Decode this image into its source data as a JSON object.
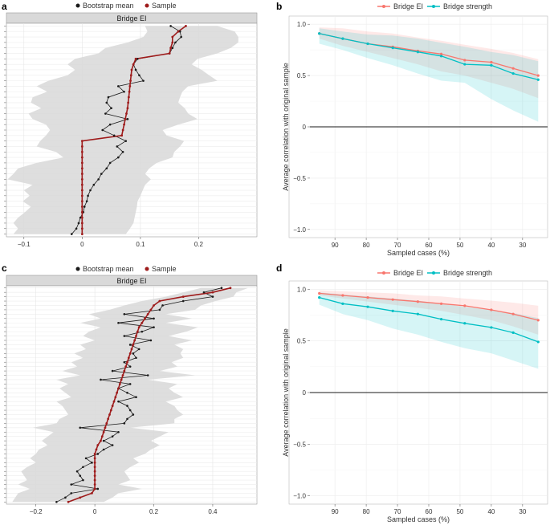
{
  "chart_data": [
    {
      "panel": "a",
      "type": "line",
      "legend": [
        {
          "label": "Bootstrap mean",
          "color": "#1a1a1a"
        },
        {
          "label": "Sample",
          "color": "#9e1b1b"
        }
      ],
      "strip_label": "Bridge EI",
      "xlim": [
        -0.13,
        0.3
      ],
      "xticks": [
        {
          "value": -0.1,
          "label": "−0.1"
        },
        {
          "value": 0,
          "label": "0"
        },
        {
          "value": 0.1,
          "label": "0.1"
        },
        {
          "value": 0.2,
          "label": "0.2"
        }
      ],
      "n_rows": 39,
      "sample": [
        0.178,
        0.165,
        0.155,
        0.155,
        0.152,
        0.15,
        0.092,
        0.088,
        0.085,
        0.084,
        0.083,
        0.082,
        0.081,
        0.08,
        0.079,
        0.078,
        0.076,
        0.074,
        0.072,
        0.07,
        0.068,
        0.0,
        0.0,
        0.0,
        0.0,
        0.0,
        0.0,
        0.0,
        0.0,
        0.0,
        0.0,
        0.0,
        0.0,
        0.0,
        0.0,
        0.0,
        0.0,
        0.0,
        0.0
      ],
      "bootstrap_mean": [
        0.152,
        0.168,
        0.17,
        0.16,
        0.155,
        0.15,
        0.095,
        0.088,
        0.092,
        0.098,
        0.105,
        0.062,
        0.072,
        0.045,
        0.042,
        0.05,
        0.04,
        0.078,
        0.048,
        0.035,
        0.055,
        0.075,
        0.06,
        0.07,
        0.062,
        0.048,
        0.042,
        0.033,
        0.028,
        0.02,
        0.014,
        0.01,
        0.008,
        0.004,
        0.002,
        -0.003,
        -0.006,
        -0.01,
        -0.018
      ],
      "ci_lower": [
        0.108,
        0.112,
        0.105,
        0.078,
        0.04,
        0.028,
        -0.012,
        -0.025,
        -0.012,
        -0.025,
        -0.058,
        -0.078,
        -0.06,
        -0.085,
        -0.088,
        -0.07,
        -0.092,
        -0.085,
        -0.062,
        -0.055,
        -0.062,
        -0.072,
        -0.078,
        -0.045,
        -0.032,
        -0.078,
        -0.11,
        -0.118,
        -0.128,
        -0.085,
        -0.1,
        -0.09,
        -0.102,
        -0.088,
        -0.098,
        -0.11,
        -0.118,
        -0.11,
        -0.118
      ],
      "ci_upper": [
        0.232,
        0.262,
        0.268,
        0.268,
        0.255,
        0.232,
        0.198,
        0.188,
        0.205,
        0.218,
        0.232,
        0.182,
        0.172,
        0.168,
        0.165,
        0.176,
        0.182,
        0.198,
        0.165,
        0.138,
        0.145,
        0.175,
        0.168,
        0.158,
        0.155,
        0.128,
        0.115,
        0.108,
        0.118,
        0.108,
        0.104,
        0.1,
        0.095,
        0.094,
        0.092,
        0.09,
        0.088,
        0.082,
        0.075
      ]
    },
    {
      "panel": "b",
      "type": "line",
      "legend": [
        {
          "label": "Bridge EI",
          "color": "#f8766d"
        },
        {
          "label": "Bridge strength",
          "color": "#00bfc4"
        }
      ],
      "xlabel": "Sampled cases (%)",
      "ylabel": "Average correlation with original sample",
      "xlim": [
        98,
        22
      ],
      "ylim": [
        -1.08,
        1.08
      ],
      "xticks": [
        90,
        80,
        70,
        60,
        50,
        40,
        30
      ],
      "yticks": [
        {
          "value": 1,
          "label": "1.0"
        },
        {
          "value": 0.5,
          "label": "0.5"
        },
        {
          "value": 0,
          "label": "0"
        },
        {
          "value": -0.5,
          "label": "−0.5"
        },
        {
          "value": -1,
          "label": "−1.0"
        }
      ],
      "x": [
        95,
        87.5,
        79.5,
        71.5,
        63.5,
        56,
        48.5,
        40,
        33,
        25
      ],
      "series": [
        {
          "name": "Bridge EI",
          "color": "#f8766d",
          "values": [
            0.91,
            0.86,
            0.81,
            0.78,
            0.74,
            0.71,
            0.65,
            0.63,
            0.57,
            0.5
          ],
          "lower": [
            0.86,
            0.79,
            0.73,
            0.67,
            0.61,
            0.54,
            0.5,
            0.43,
            0.37,
            0.28
          ],
          "upper": [
            0.97,
            0.96,
            0.93,
            0.91,
            0.87,
            0.84,
            0.8,
            0.76,
            0.72,
            0.66
          ]
        },
        {
          "name": "Bridge strength",
          "color": "#00bfc4",
          "values": [
            0.91,
            0.86,
            0.81,
            0.77,
            0.73,
            0.69,
            0.61,
            0.6,
            0.52,
            0.46
          ],
          "lower": [
            0.81,
            0.75,
            0.67,
            0.6,
            0.52,
            0.45,
            0.43,
            0.27,
            0.16,
            0.05
          ],
          "upper": [
            0.96,
            0.93,
            0.9,
            0.89,
            0.86,
            0.82,
            0.78,
            0.73,
            0.7,
            0.64
          ]
        }
      ]
    },
    {
      "panel": "c",
      "type": "line",
      "legend": [
        {
          "label": "Bootstrap mean",
          "color": "#1a1a1a"
        },
        {
          "label": "Sample",
          "color": "#9e1b1b"
        }
      ],
      "strip_label": "Bridge EI",
      "xlim": [
        -0.3,
        0.55
      ],
      "xticks": [
        {
          "value": -0.2,
          "label": "−0.2"
        },
        {
          "value": 0,
          "label": "0"
        },
        {
          "value": 0.2,
          "label": "0.2"
        },
        {
          "value": 0.4,
          "label": "0.4"
        }
      ],
      "n_rows": 50,
      "sample": [
        0.46,
        0.4,
        0.3,
        0.22,
        0.2,
        0.19,
        0.18,
        0.17,
        0.16,
        0.15,
        0.145,
        0.14,
        0.135,
        0.13,
        0.125,
        0.12,
        0.115,
        0.11,
        0.105,
        0.1,
        0.095,
        0.09,
        0.085,
        0.08,
        0.075,
        0.07,
        0.065,
        0.06,
        0.055,
        0.05,
        0.045,
        0.04,
        0.035,
        0.03,
        0.025,
        0.02,
        0.01,
        0.005,
        0.0,
        0.0,
        0.0,
        0.0,
        0.0,
        0.0,
        0.0,
        0.0,
        0.0,
        -0.01,
        -0.05,
        -0.09
      ],
      "bootstrap_mean": [
        0.43,
        0.37,
        0.4,
        0.3,
        0.23,
        0.22,
        0.1,
        0.2,
        0.08,
        0.2,
        0.16,
        0.1,
        0.19,
        0.12,
        0.15,
        0.13,
        0.14,
        0.1,
        0.12,
        0.06,
        0.18,
        0.02,
        0.12,
        0.08,
        0.11,
        0.14,
        0.08,
        0.11,
        0.12,
        0.13,
        0.11,
        0.1,
        -0.05,
        0.08,
        0.06,
        0.03,
        0.06,
        0.03,
        0.01,
        -0.03,
        -0.01,
        -0.04,
        -0.06,
        -0.05,
        -0.04,
        -0.08,
        0.01,
        -0.08,
        -0.1,
        -0.13
      ],
      "ci_lower": [
        0.36,
        0.3,
        0.24,
        0.16,
        0.1,
        0.05,
        -0.02,
        0.02,
        -0.05,
        0.02,
        -0.02,
        -0.04,
        0.0,
        -0.05,
        -0.03,
        -0.07,
        -0.04,
        -0.08,
        -0.06,
        -0.11,
        -0.05,
        -0.13,
        -0.09,
        -0.12,
        -0.1,
        -0.08,
        -0.13,
        -0.11,
        -0.1,
        -0.09,
        -0.12,
        -0.13,
        -0.21,
        -0.14,
        -0.16,
        -0.18,
        -0.16,
        -0.19,
        -0.2,
        -0.22,
        -0.2,
        -0.23,
        -0.25,
        -0.24,
        -0.23,
        -0.26,
        -0.22,
        -0.26,
        -0.27,
        -0.28
      ],
      "ci_upper": [
        0.52,
        0.48,
        0.47,
        0.41,
        0.36,
        0.34,
        0.24,
        0.33,
        0.24,
        0.35,
        0.31,
        0.25,
        0.33,
        0.27,
        0.3,
        0.29,
        0.3,
        0.26,
        0.28,
        0.22,
        0.34,
        0.18,
        0.28,
        0.25,
        0.27,
        0.3,
        0.24,
        0.27,
        0.28,
        0.3,
        0.27,
        0.27,
        0.12,
        0.25,
        0.22,
        0.19,
        0.22,
        0.19,
        0.17,
        0.13,
        0.15,
        0.12,
        0.1,
        0.11,
        0.12,
        0.08,
        0.16,
        0.08,
        0.06,
        0.03
      ]
    },
    {
      "panel": "d",
      "type": "line",
      "legend": [
        {
          "label": "Bridge EI",
          "color": "#f8766d"
        },
        {
          "label": "Bridge strength",
          "color": "#00bfc4"
        }
      ],
      "xlabel": "Sampled cases (%)",
      "ylabel": "Average correlation with original sample",
      "xlim": [
        98,
        22
      ],
      "ylim": [
        -1.08,
        1.08
      ],
      "xticks": [
        90,
        80,
        70,
        60,
        50,
        40,
        30
      ],
      "yticks": [
        {
          "value": 1,
          "label": "1.0"
        },
        {
          "value": 0.5,
          "label": "0.5"
        },
        {
          "value": 0,
          "label": "0"
        },
        {
          "value": -0.5,
          "label": "−0.5"
        },
        {
          "value": -1,
          "label": "−1.0"
        }
      ],
      "x": [
        95,
        87.5,
        79.5,
        71.5,
        63.5,
        56,
        48.5,
        40,
        33,
        25
      ],
      "series": [
        {
          "name": "Bridge EI",
          "color": "#f8766d",
          "values": [
            0.96,
            0.94,
            0.92,
            0.9,
            0.88,
            0.86,
            0.84,
            0.8,
            0.76,
            0.7
          ],
          "lower": [
            0.94,
            0.91,
            0.88,
            0.85,
            0.82,
            0.79,
            0.75,
            0.7,
            0.64,
            0.56
          ],
          "upper": [
            0.99,
            0.98,
            0.97,
            0.96,
            0.94,
            0.93,
            0.91,
            0.89,
            0.87,
            0.84
          ]
        },
        {
          "name": "Bridge strength",
          "color": "#00bfc4",
          "values": [
            0.92,
            0.86,
            0.83,
            0.79,
            0.76,
            0.71,
            0.67,
            0.63,
            0.58,
            0.49
          ],
          "lower": [
            0.85,
            0.76,
            0.7,
            0.62,
            0.56,
            0.49,
            0.43,
            0.38,
            0.31,
            0.23
          ],
          "upper": [
            0.97,
            0.95,
            0.93,
            0.91,
            0.89,
            0.86,
            0.83,
            0.8,
            0.77,
            0.72
          ]
        }
      ]
    }
  ]
}
